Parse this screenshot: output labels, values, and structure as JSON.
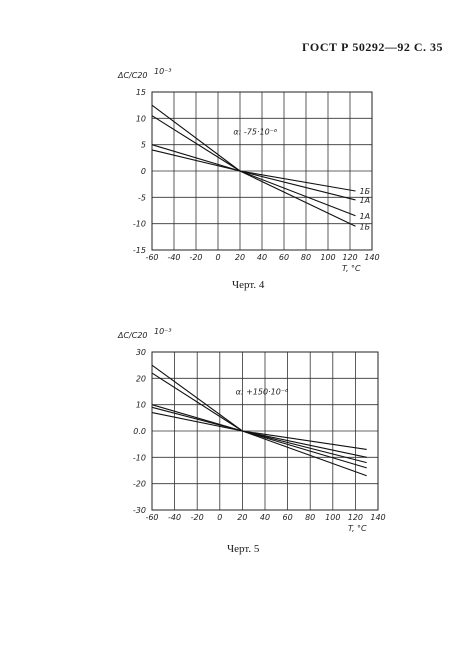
{
  "page_header": "ГОСТ Р 50292—92 С. 35",
  "chart_data": [
    {
      "type": "line",
      "caption": "Черт. 4",
      "ylabel": "ΔC/C20",
      "yunit": "10⁻³",
      "xlabel": "T, °C",
      "annotation": "α: -75·10⁻⁶",
      "xlim": [
        -60,
        140
      ],
      "ylim": [
        -15,
        15
      ],
      "xticks": [
        "-60",
        "-40",
        "-20",
        "0",
        "20",
        "40",
        "60",
        "80",
        "100",
        "120",
        "140"
      ],
      "yticks": [
        "15",
        "10",
        "5",
        "0",
        "-5",
        "-10",
        "-15"
      ],
      "grid": true,
      "series": [
        {
          "name": "1Б",
          "x": [
            -60,
            20,
            125
          ],
          "y": [
            12.5,
            0,
            -10.5
          ]
        },
        {
          "name": "1А",
          "x": [
            -60,
            20,
            125
          ],
          "y": [
            10.5,
            0,
            -8.5
          ]
        },
        {
          "name": "1А",
          "x": [
            -60,
            20,
            125
          ],
          "y": [
            5,
            0,
            -5.5
          ]
        },
        {
          "name": "1Б",
          "x": [
            -60,
            20,
            125
          ],
          "y": [
            4,
            0,
            -3.8
          ]
        }
      ]
    },
    {
      "type": "line",
      "caption": "Черт. 5",
      "ylabel": "ΔC/C20",
      "yunit": "10⁻³",
      "xlabel": "T, °C",
      "annotation": "α: +150·10⁻⁶",
      "xlim": [
        -60,
        140
      ],
      "ylim": [
        -30,
        30
      ],
      "xticks": [
        "-60",
        "-40",
        "-20",
        "0",
        "20",
        "40",
        "60",
        "80",
        "100",
        "120",
        "140"
      ],
      "yticks": [
        "30",
        "20",
        "10",
        "0.0",
        "-10",
        "-20",
        "-30"
      ],
      "grid": true,
      "series": [
        {
          "name": "",
          "x": [
            -60,
            20,
            130
          ],
          "y": [
            25,
            0,
            -17
          ]
        },
        {
          "name": "",
          "x": [
            -60,
            20,
            130
          ],
          "y": [
            22,
            0,
            -14
          ]
        },
        {
          "name": "",
          "x": [
            -60,
            20,
            130
          ],
          "y": [
            10,
            0,
            -7
          ]
        },
        {
          "name": "",
          "x": [
            -60,
            20,
            130
          ],
          "y": [
            9,
            0,
            -10
          ]
        },
        {
          "name": "",
          "x": [
            -60,
            20,
            130
          ],
          "y": [
            7,
            0,
            -12
          ]
        }
      ]
    }
  ]
}
